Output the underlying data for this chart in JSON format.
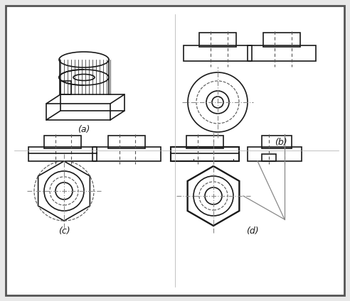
{
  "bg_color": "#f0f0f0",
  "border_color": "#888888",
  "line_color": "#1a1a1a",
  "dashed_color": "#555555",
  "label_a": "(a)",
  "label_b": "(b)",
  "label_c": "(c)",
  "label_d": "(d)"
}
